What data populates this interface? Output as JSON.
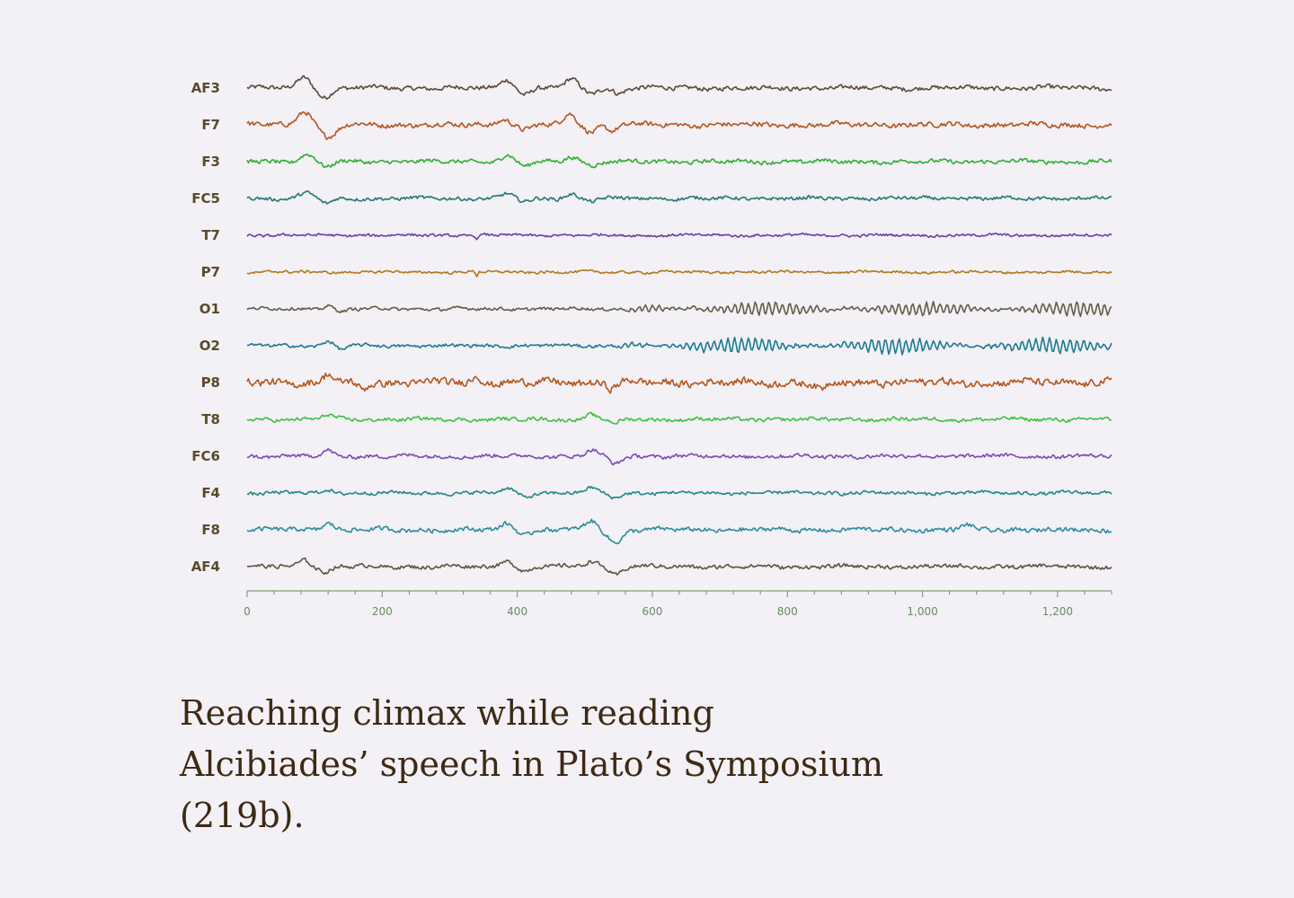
{
  "chart_data": {
    "type": "line",
    "channels": [
      {
        "name": "AF3",
        "color": "#5b4a3a",
        "events": [
          [
            85,
            12,
            14
          ],
          [
            115,
            -10,
            14
          ],
          [
            385,
            10,
            12
          ],
          [
            412,
            -7,
            12
          ],
          [
            480,
            9,
            12
          ],
          [
            510,
            -6,
            12
          ],
          [
            550,
            -6,
            10
          ]
        ],
        "noise": 2.2
      },
      {
        "name": "F7",
        "color": "#b5561c",
        "events": [
          [
            85,
            16,
            14
          ],
          [
            120,
            -14,
            16
          ],
          [
            380,
            7,
            12
          ],
          [
            410,
            -6,
            12
          ],
          [
            478,
            12,
            12
          ],
          [
            510,
            -8,
            12
          ],
          [
            540,
            -6,
            10
          ]
        ],
        "noise": 2.4
      },
      {
        "name": "F3",
        "color": "#2fae2f",
        "events": [
          [
            88,
            8,
            14
          ],
          [
            118,
            -6,
            12
          ],
          [
            385,
            7,
            12
          ],
          [
            412,
            -5,
            12
          ],
          [
            480,
            6,
            12
          ],
          [
            512,
            -4,
            12
          ]
        ],
        "noise": 2.0
      },
      {
        "name": "FC5",
        "color": "#1f7a72",
        "events": [
          [
            88,
            6,
            14
          ],
          [
            118,
            -6,
            12
          ],
          [
            385,
            5,
            12
          ],
          [
            412,
            -4,
            12
          ],
          [
            480,
            5,
            12
          ],
          [
            510,
            -3,
            12
          ]
        ],
        "noise": 1.8
      },
      {
        "name": "T7",
        "color": "#6a3ea8",
        "events": [
          [
            340,
            -6,
            2
          ]
        ],
        "noise": 1.3
      },
      {
        "name": "P7",
        "color": "#b07a1a",
        "events": [
          [
            340,
            -5,
            2
          ]
        ],
        "noise": 1.3
      },
      {
        "name": "O1",
        "color": "#5f5f4a",
        "events": [
          [
            120,
            4,
            10
          ],
          [
            140,
            -3,
            10
          ]
        ],
        "noise": 1.6,
        "alpha": [
          [
            560,
            1280,
            7
          ]
        ]
      },
      {
        "name": "O2",
        "color": "#1a7c90",
        "events": [
          [
            120,
            5,
            10
          ],
          [
            140,
            -4,
            10
          ]
        ],
        "noise": 1.6,
        "alpha": [
          [
            540,
            1280,
            8
          ]
        ]
      },
      {
        "name": "P8",
        "color": "#b5561c",
        "events": [
          [
            120,
            10,
            8
          ],
          [
            170,
            -8,
            10
          ],
          [
            340,
            8,
            8
          ],
          [
            540,
            -6,
            10
          ],
          [
            850,
            -8,
            12
          ]
        ],
        "noise": 3.6
      },
      {
        "name": "T8",
        "color": "#3fc13f",
        "events": [
          [
            120,
            5,
            10
          ],
          [
            510,
            6,
            10
          ],
          [
            545,
            -5,
            10
          ]
        ],
        "noise": 1.8
      },
      {
        "name": "FC6",
        "color": "#7a4ab8",
        "events": [
          [
            120,
            6,
            10
          ],
          [
            510,
            7,
            12
          ],
          [
            545,
            -9,
            12
          ]
        ],
        "noise": 1.9
      },
      {
        "name": "F4",
        "color": "#1f8a82",
        "events": [
          [
            120,
            4,
            10
          ],
          [
            385,
            5,
            12
          ],
          [
            412,
            -4,
            12
          ],
          [
            510,
            5,
            12
          ],
          [
            545,
            -5,
            12
          ]
        ],
        "noise": 1.7
      },
      {
        "name": "F8",
        "color": "#2a8ca0",
        "events": [
          [
            120,
            8,
            12
          ],
          [
            385,
            7,
            12
          ],
          [
            412,
            -5,
            12
          ],
          [
            510,
            10,
            12
          ],
          [
            545,
            -14,
            14
          ],
          [
            1065,
            5,
            10
          ]
        ],
        "noise": 2.2
      },
      {
        "name": "AF4",
        "color": "#5b5540",
        "events": [
          [
            85,
            8,
            12
          ],
          [
            115,
            -6,
            12
          ],
          [
            385,
            7,
            12
          ],
          [
            412,
            -5,
            12
          ],
          [
            510,
            7,
            12
          ],
          [
            545,
            -9,
            12
          ]
        ],
        "noise": 2.0
      }
    ],
    "x_range": [
      0,
      1280
    ],
    "x_ticks": [
      0,
      200,
      400,
      600,
      800,
      1000,
      1200
    ],
    "x_tick_labels": [
      "0",
      "200",
      "400",
      "600",
      "800",
      "1,000",
      "1,200"
    ],
    "grid": false
  },
  "caption": {
    "lines": [
      "Reaching climax while reading",
      "Alcibiades’ speech in Plato’s Symposium",
      "(219b)."
    ]
  }
}
